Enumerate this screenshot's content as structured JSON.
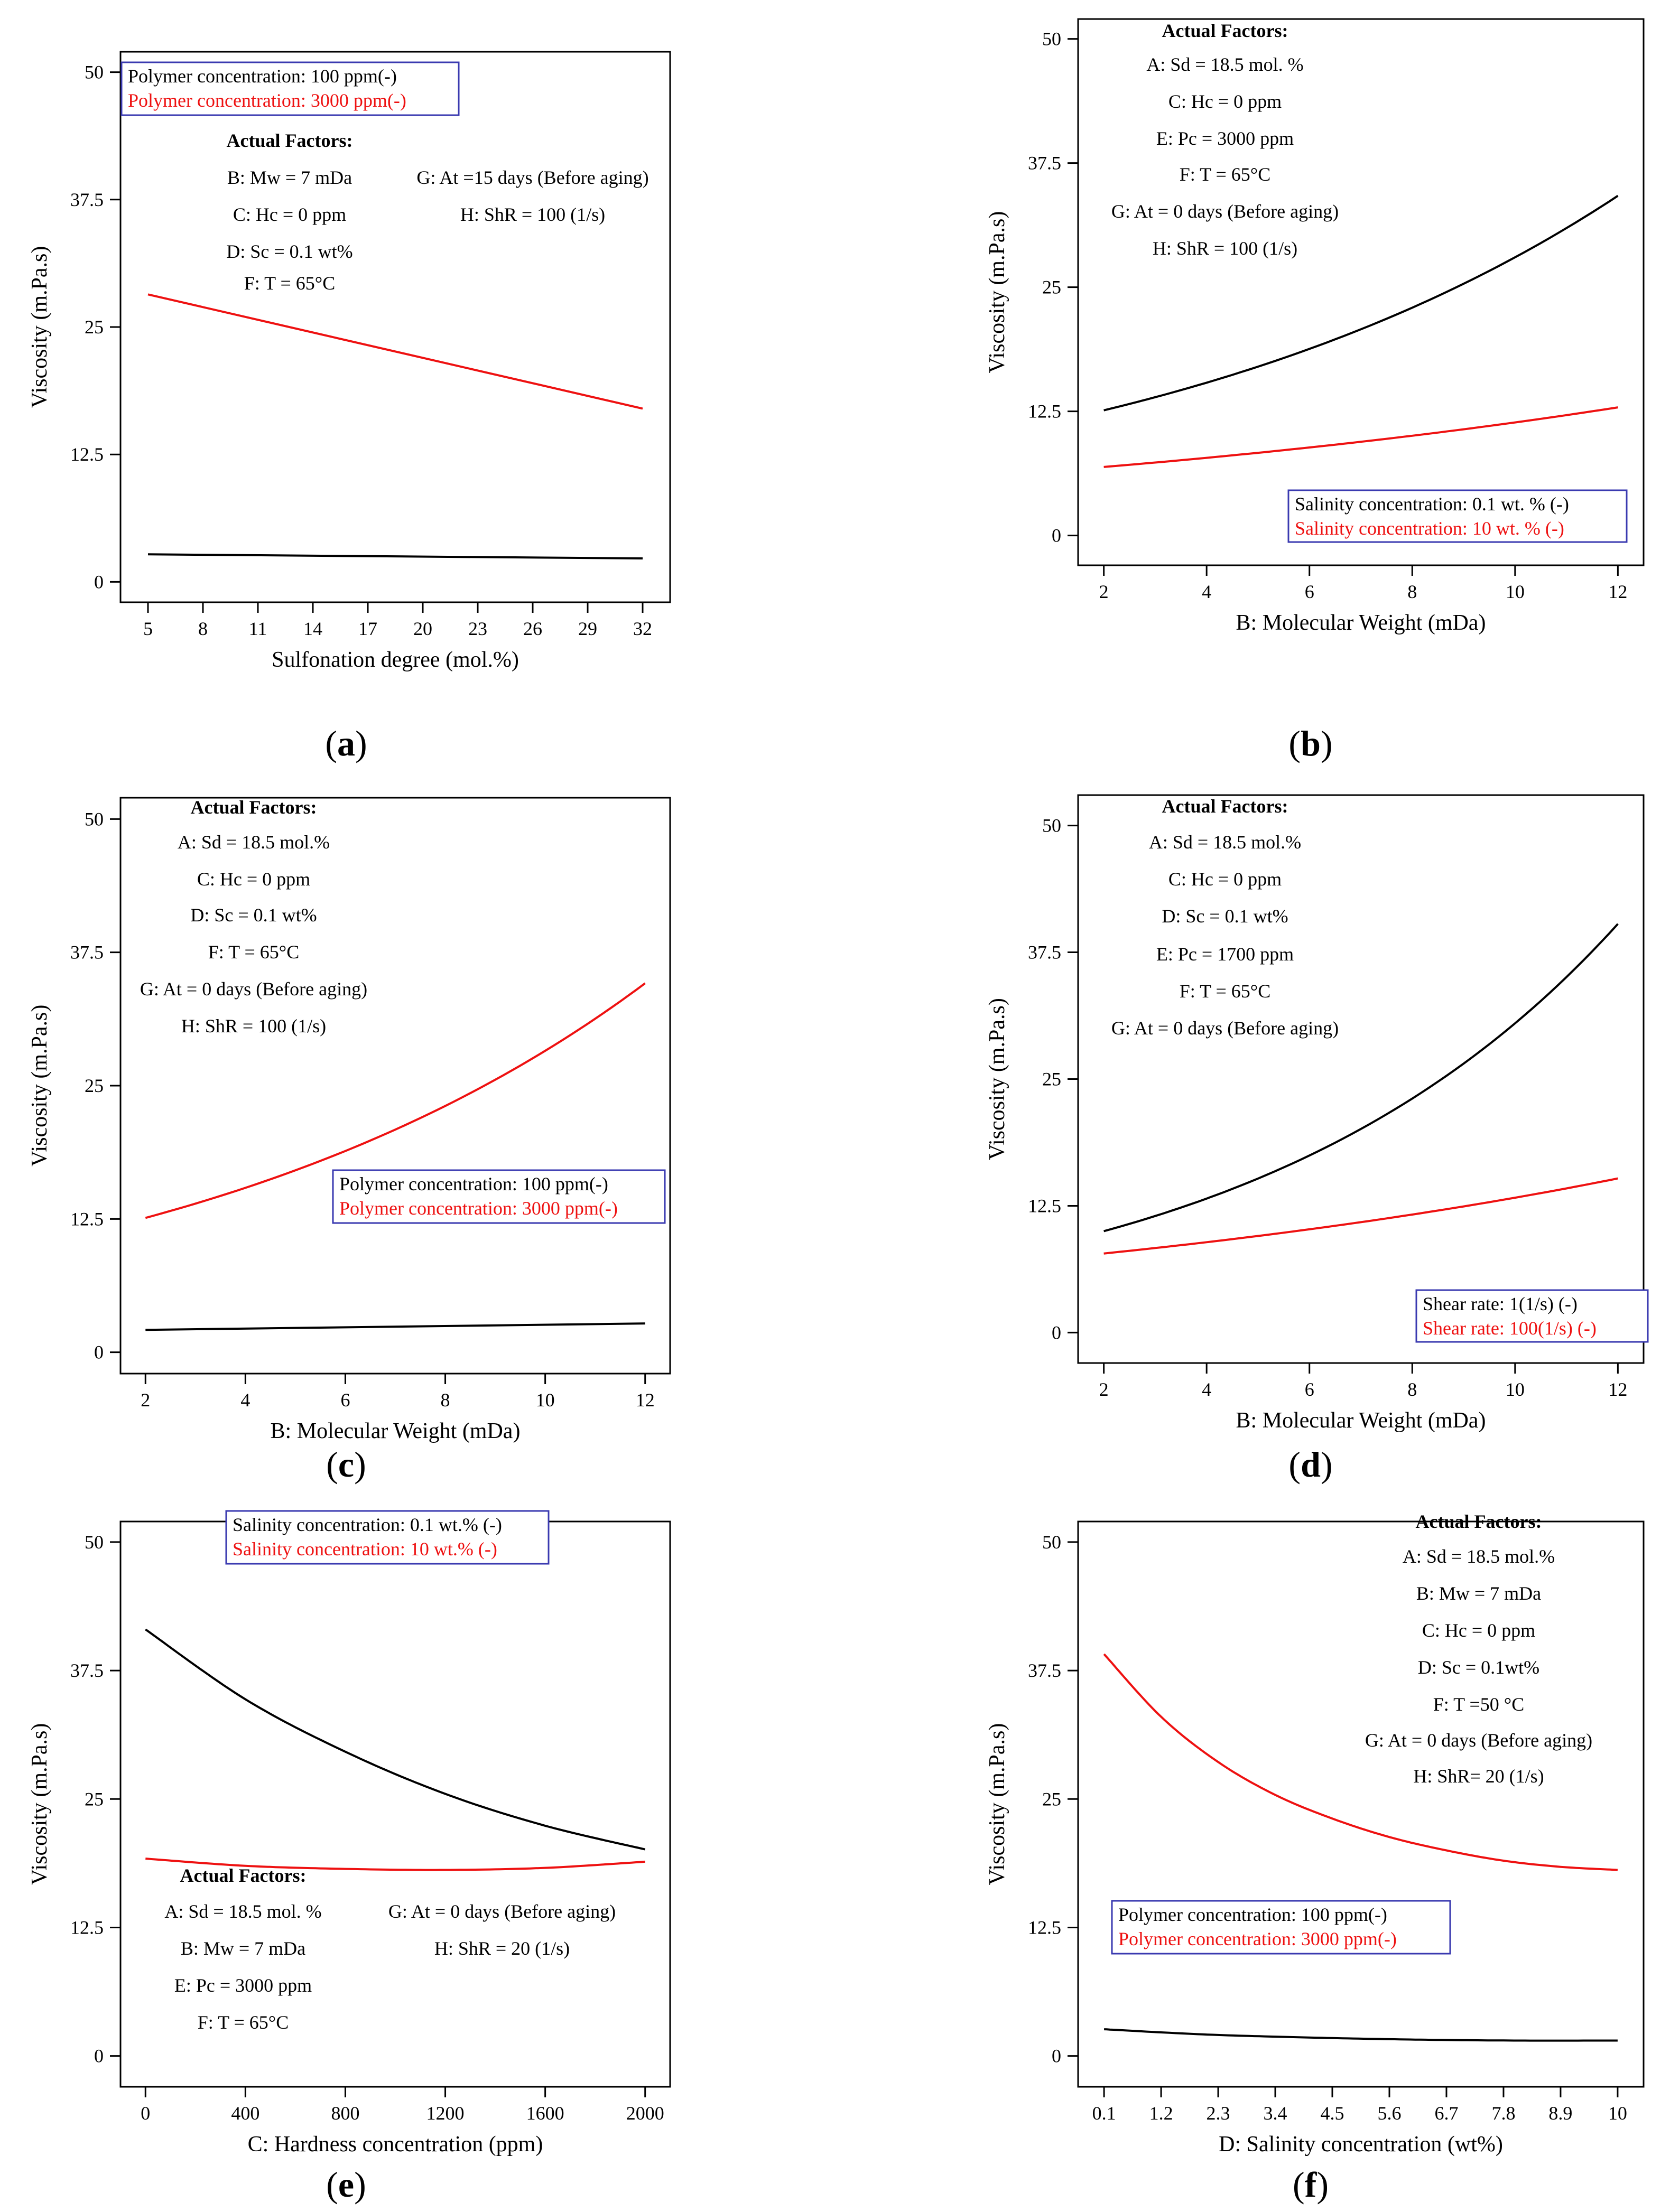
{
  "chart_data": [
    {
      "id": "a",
      "type": "line",
      "panel_label": "a",
      "xlabel": "Sulfonation degree (mol.%)",
      "ylabel": "Viscosity (m.Pa.s)",
      "xlim": [
        3.5,
        33.5
      ],
      "ylim": [
        -2,
        52
      ],
      "xticks": [
        "5",
        "8",
        "11",
        "14",
        "17",
        "20",
        "23",
        "26",
        "29",
        "32"
      ],
      "xtick_values": [
        5,
        8,
        11,
        14,
        17,
        20,
        23,
        26,
        29,
        32
      ],
      "yticks": [
        "0",
        "12.5",
        "25",
        "37.5",
        "50"
      ],
      "ytick_values": [
        0,
        12.5,
        25,
        37.5,
        50
      ],
      "legend": [
        "Polymer concentration: 100   ppm(-)",
        "Polymer concentration: 3000 ppm(-)"
      ],
      "factors_title": "Actual Factors:",
      "factors": [
        "B: Mw = 7 mDa",
        "C: Hc = 0 ppm",
        "D: Sc = 0.1 wt%",
        "F: T = 65°C",
        "G: At =15 days (Before aging)",
        "H: ShR = 100 (1/s)"
      ],
      "series": [
        {
          "name": "Polymer concentration: 100   ppm(-)",
          "color": "#000000",
          "x": [
            5,
            32
          ],
          "y": [
            2.7,
            2.3
          ],
          "curve": "linear"
        },
        {
          "name": "Polymer concentration: 3000 ppm(-)",
          "color": "#ee1111",
          "x": [
            5,
            32
          ],
          "y": [
            28.2,
            17.0
          ],
          "curve": "linear"
        }
      ]
    },
    {
      "id": "b",
      "type": "line",
      "panel_label": "b",
      "xlabel": "B: Molecular Weight (mDa)",
      "ylabel": "Viscosity (m.Pa.s)",
      "xlim": [
        1.5,
        12.5
      ],
      "ylim": [
        -3,
        52
      ],
      "xticks": [
        "2",
        "4",
        "6",
        "8",
        "10",
        "12"
      ],
      "xtick_values": [
        2,
        4,
        6,
        8,
        10,
        12
      ],
      "yticks": [
        "0",
        "12.5",
        "25",
        "37.5",
        "50"
      ],
      "ytick_values": [
        0,
        12.5,
        25,
        37.5,
        50
      ],
      "legend": [
        "Salinity concentration: 0.1 wt. % (-)",
        "Salinity concentration: 10  wt. % (-)"
      ],
      "factors_title": "Actual Factors:",
      "factors": [
        "A: Sd = 18.5 mol. %",
        "C: Hc = 0 ppm",
        "E: Pc = 3000 ppm",
        "F: T = 65°C",
        "G: At = 0 days (Before aging)",
        "H: ShR = 100 (1/s)"
      ],
      "series": [
        {
          "name": "Salinity concentration: 0.1 wt. % (-)",
          "color": "#000000",
          "x": [
            2,
            12
          ],
          "y": [
            12.6,
            34.2
          ],
          "curve": "exp"
        },
        {
          "name": "Salinity concentration: 10  wt. % (-)",
          "color": "#ee1111",
          "x": [
            2,
            12
          ],
          "y": [
            6.9,
            12.9
          ],
          "curve": "exp"
        }
      ]
    },
    {
      "id": "c",
      "type": "line",
      "panel_label": "c",
      "xlabel": "B: Molecular Weight (mDa)",
      "ylabel": "Viscosity (m.Pa.s)",
      "xlim": [
        1.5,
        12.5
      ],
      "ylim": [
        -2,
        52
      ],
      "xticks": [
        "2",
        "4",
        "6",
        "8",
        "10",
        "12"
      ],
      "xtick_values": [
        2,
        4,
        6,
        8,
        10,
        12
      ],
      "yticks": [
        "0",
        "12.5",
        "25",
        "37.5",
        "50"
      ],
      "ytick_values": [
        0,
        12.5,
        25,
        37.5,
        50
      ],
      "legend": [
        "Polymer concentration: 100 ppm(-)",
        "Polymer concentration: 3000 ppm(-)"
      ],
      "factors_title": "Actual Factors:",
      "factors": [
        "A: Sd = 18.5 mol.%",
        "C: Hc = 0 ppm",
        "D: Sc = 0.1 wt%",
        "F: T = 65°C",
        "G: At = 0 days (Before aging)",
        "H: ShR = 100 (1/s)"
      ],
      "series": [
        {
          "name": "Polymer concentration: 100 ppm(-)",
          "color": "#000000",
          "x": [
            2,
            12
          ],
          "y": [
            2.1,
            2.7
          ],
          "curve": "linear"
        },
        {
          "name": "Polymer concentration: 3000 ppm(-)",
          "color": "#ee1111",
          "x": [
            2,
            12
          ],
          "y": [
            12.6,
            34.6
          ],
          "curve": "exp"
        }
      ]
    },
    {
      "id": "d",
      "type": "line",
      "panel_label": "d",
      "xlabel": "B: Molecular Weight (mDa)",
      "ylabel": "Viscosity (m.Pa.s)",
      "xlim": [
        1.5,
        12.5
      ],
      "ylim": [
        -3,
        53
      ],
      "xticks": [
        "2",
        "4",
        "6",
        "8",
        "10",
        "12"
      ],
      "xtick_values": [
        2,
        4,
        6,
        8,
        10,
        12
      ],
      "yticks": [
        "0",
        "12.5",
        "25",
        "37.5",
        "50"
      ],
      "ytick_values": [
        0,
        12.5,
        25,
        37.5,
        50
      ],
      "legend": [
        "Shear rate: 1(1/s)  (-)",
        "Shear rate: 100(1/s)  (-)"
      ],
      "factors_title": "Actual Factors:",
      "factors": [
        "A: Sd = 18.5 mol.%",
        "C: Hc = 0 ppm",
        "D: Sc = 0.1 wt%",
        "E: Pc = 1700  ppm",
        "F: T = 65°C",
        "G: At = 0 days (Before aging)"
      ],
      "series": [
        {
          "name": "Shear rate: 1(1/s)  (-)",
          "color": "#000000",
          "x": [
            2,
            12
          ],
          "y": [
            10.0,
            40.3
          ],
          "curve": "exp"
        },
        {
          "name": "Shear rate: 100(1/s)  (-)",
          "color": "#ee1111",
          "x": [
            2,
            12
          ],
          "y": [
            7.8,
            15.2
          ],
          "curve": "exp"
        }
      ]
    },
    {
      "id": "e",
      "type": "line",
      "panel_label": "e",
      "xlabel": "C: Hardness concentration (ppm)",
      "ylabel": "Viscosity (m.Pa.s)",
      "xlim": [
        -100,
        2100
      ],
      "ylim": [
        -3,
        52
      ],
      "xticks": [
        "0",
        "400",
        "800",
        "1200",
        "1600",
        "2000"
      ],
      "xtick_values": [
        0,
        400,
        800,
        1200,
        1600,
        2000
      ],
      "yticks": [
        "0",
        "12.5",
        "25",
        "37.5",
        "50"
      ],
      "ytick_values": [
        0,
        12.5,
        25,
        37.5,
        50
      ],
      "legend": [
        "Salinity concentration: 0.1 wt.% (-)",
        "Salinity concentration: 10  wt.% (-)"
      ],
      "factors_title": "Actual Factors:",
      "factors": [
        "A: Sd = 18.5 mol. %",
        "B: Mw = 7 mDa",
        "E: Pc = 3000 ppm",
        "F: T = 65°C",
        "G: At = 0 days (Before aging)",
        "H: ShR =  20  (1/s)"
      ],
      "series": [
        {
          "name": "Salinity concentration: 0.1 wt.% (-)",
          "color": "#000000",
          "x": [
            0,
            400,
            800,
            1200,
            1600,
            2000
          ],
          "y": [
            41.5,
            34.7,
            29.6,
            25.5,
            22.4,
            20.1
          ],
          "curve": "smooth"
        },
        {
          "name": "Salinity concentration: 10  wt.% (-)",
          "color": "#ee1111",
          "x": [
            0,
            400,
            800,
            1200,
            1600,
            2000
          ],
          "y": [
            19.2,
            18.5,
            18.2,
            18.1,
            18.3,
            18.9
          ],
          "curve": "smooth"
        }
      ]
    },
    {
      "id": "f",
      "type": "line",
      "panel_label": "f",
      "xlabel": "D: Salinity concentration (wt%)",
      "ylabel": "Viscosity (m.Pa.s)",
      "xlim": [
        -0.4,
        10.5
      ],
      "ylim": [
        -3,
        52
      ],
      "xticks": [
        "0.1",
        "1.2",
        "2.3",
        "3.4",
        "4.5",
        "5.6",
        "6.7",
        "7.8",
        "8.9",
        "10"
      ],
      "xtick_values": [
        0.1,
        1.2,
        2.3,
        3.4,
        4.5,
        5.6,
        6.7,
        7.8,
        8.9,
        10
      ],
      "yticks": [
        "0",
        "12.5",
        "25",
        "37.5",
        "50"
      ],
      "ytick_values": [
        0,
        12.5,
        25,
        37.5,
        50
      ],
      "legend": [
        "Polymer concentration: 100 ppm(-)",
        "Polymer concentration: 3000 ppm(-)"
      ],
      "factors_title": "Actual Factors:",
      "factors": [
        "A: Sd = 18.5 mol.%",
        "B: Mw = 7 mDa",
        "C: Hc = 0 ppm",
        "D: Sc =  0.1wt%",
        "F: T =50 °C",
        "G: At = 0 days (Before aging)",
        "H: ShR= 20 (1/s)"
      ],
      "series": [
        {
          "name": "Polymer concentration: 100 ppm(-)",
          "color": "#000000",
          "x": [
            0.1,
            2,
            4,
            6,
            8,
            10
          ],
          "y": [
            2.6,
            2.1,
            1.8,
            1.6,
            1.5,
            1.5
          ],
          "curve": "smooth"
        },
        {
          "name": "Polymer concentration: 3000 ppm(-)",
          "color": "#ee1111",
          "x": [
            0.1,
            1.2,
            2.3,
            3.4,
            4.5,
            5.6,
            6.7,
            7.8,
            8.9,
            10
          ],
          "y": [
            39.1,
            33.0,
            28.6,
            25.4,
            23.1,
            21.3,
            20.0,
            19.0,
            18.4,
            18.1
          ],
          "curve": "smooth"
        }
      ]
    }
  ]
}
